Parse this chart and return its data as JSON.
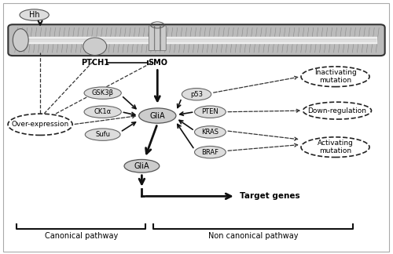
{
  "bg_color": "#ffffff",
  "hh_label": "Hh",
  "ptch1_label": "PTCH1",
  "smo_label": "SMO",
  "glia_top_label": "GliA",
  "gsk3b_label": "GSK3β",
  "ck1a_label": "CK1α",
  "sufu_label": "Sufu",
  "p53_label": "p53",
  "pten_label": "PTEN",
  "kras_label": "KRAS",
  "braf_label": "BRAF",
  "glia_bottom_label": "GliA",
  "target_genes_label": "Target genes",
  "over_expression_label": "Over-expression",
  "inactivating_label": "Inactivating\nmutation",
  "down_regulation_label": "Down-regulation",
  "activating_label": "Activating\nmutation",
  "canonical_label": "Canonical pathway",
  "non_canonical_label": "Non canonical pathway",
  "node_color": "#cccccc",
  "node_edge_color": "#666666",
  "arrow_color": "#111111",
  "dashed_color": "#333333",
  "membrane_color": "#999999",
  "membrane_inner_color": "#dddddd"
}
